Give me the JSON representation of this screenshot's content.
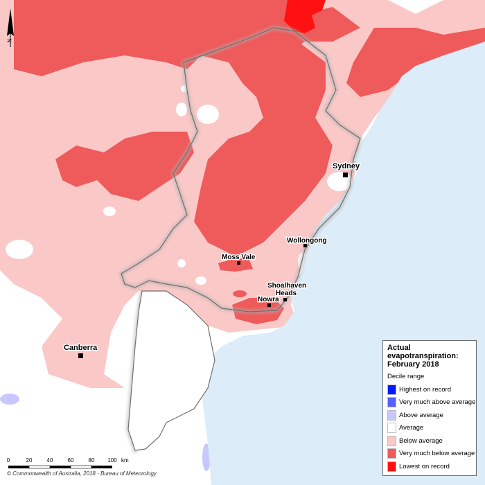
{
  "map": {
    "colors": {
      "highest": "#0019ff",
      "very_much_above": "#5560ff",
      "above": "#c8c8ff",
      "average": "#ffffff",
      "below": "#fbc8c8",
      "very_much_below": "#ef5a5a",
      "lowest": "#ff1111",
      "ocean": "#dcecf8",
      "land_outside": "#ffffff",
      "border": "#7a7a7a"
    },
    "cities": [
      {
        "id": "sydney",
        "name": "Sydney"
      },
      {
        "id": "wollongong",
        "name": "Wollongong"
      },
      {
        "id": "moss-vale",
        "name": "Moss Vale"
      },
      {
        "id": "shoalhaven-heads",
        "name": "Shoalhaven Heads"
      },
      {
        "id": "nowra",
        "name": "Nowra"
      },
      {
        "id": "canberra",
        "name": "Canberra"
      }
    ]
  },
  "legend": {
    "title_line1": "Actual",
    "title_line2": "evapotranspiration:",
    "title_line3": "February 2018",
    "subtitle": "Decile range",
    "items": [
      {
        "label": "Highest on record",
        "color": "#0019ff"
      },
      {
        "label": "Very much above average",
        "color": "#5560ff"
      },
      {
        "label": "Above average",
        "color": "#c8c8ff"
      },
      {
        "label": "Average",
        "color": "#ffffff"
      },
      {
        "label": "Below average",
        "color": "#fbc8c8"
      },
      {
        "label": "Very much below average",
        "color": "#ef5a5a"
      },
      {
        "label": "Lowest on record",
        "color": "#ff1111"
      }
    ]
  },
  "scale": {
    "ticks": [
      "0",
      "20",
      "40",
      "60",
      "80",
      "100"
    ],
    "unit": "km"
  },
  "north_label": "N",
  "copyright": "© Commonwealth of Australia, 2018 - Bureau of Meteorology"
}
